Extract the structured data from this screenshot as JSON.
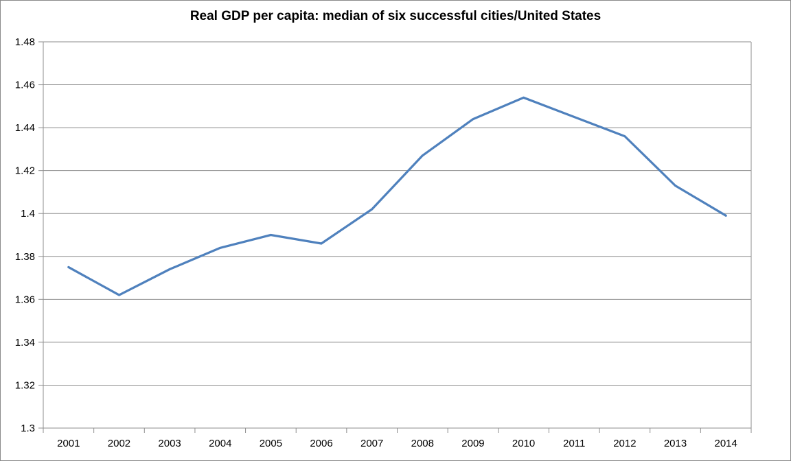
{
  "chart": {
    "title": "Real GDP per capita: median of six successful cities/United States"
  },
  "chart_data": {
    "type": "line",
    "title": "Real GDP per capita: median of six successful cities/United States",
    "categories": [
      "2001",
      "2002",
      "2003",
      "2004",
      "2005",
      "2006",
      "2007",
      "2008",
      "2009",
      "2010",
      "2011",
      "2012",
      "2013",
      "2014"
    ],
    "values": [
      1.375,
      1.362,
      1.374,
      1.384,
      1.39,
      1.386,
      1.402,
      1.427,
      1.444,
      1.454,
      1.445,
      1.436,
      1.413,
      1.399
    ],
    "xlabel": "",
    "ylabel": "",
    "ylim": [
      1.3,
      1.48
    ],
    "ytick_step": 0.02,
    "yticks": [
      "1.48",
      "1.46",
      "1.44",
      "1.42",
      "1.4",
      "1.38",
      "1.36",
      "1.34",
      "1.32",
      "1.3"
    ],
    "grid": true,
    "legend": false,
    "colors": {
      "line": "#4F81BD",
      "gridline": "#8E8E8E",
      "axis": "#8E8E8E",
      "text": "#000000",
      "border": "#898989",
      "background": "#FFFFFF"
    }
  }
}
